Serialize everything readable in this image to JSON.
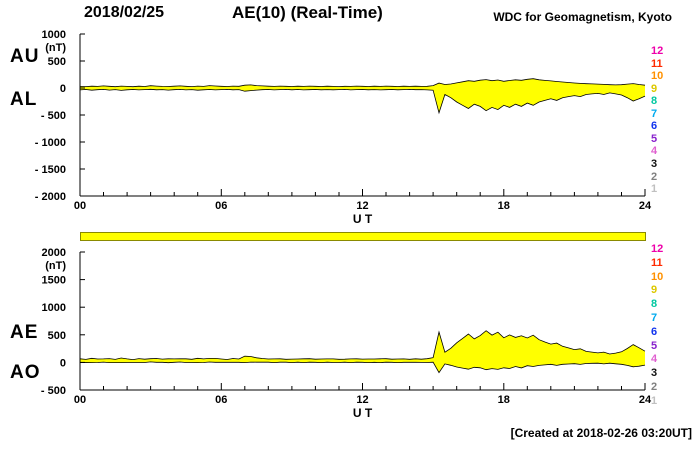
{
  "header": {
    "date": "2018/02/25",
    "title": "AE(10) (Real-Time)",
    "source": "WDC for Geomagnetism, Kyoto"
  },
  "footer": {
    "created": "[Created at 2018-02-26 03:20UT]"
  },
  "station_legend": {
    "values": [
      "12",
      "11",
      "10",
      "9",
      "8",
      "7",
      "6",
      "5",
      "4",
      "3",
      "2",
      "1"
    ],
    "colors": [
      "#ee00aa",
      "#ff2a00",
      "#ff9100",
      "#ddc800",
      "#00c8a0",
      "#00aaee",
      "#1133ee",
      "#8822cc",
      "#e060d0",
      "#111111",
      "#808080",
      "#c0c0c0"
    ]
  },
  "availability_bar": {
    "color": "#ffff00"
  },
  "chart_data": [
    {
      "type": "area",
      "name": "AU-AL panel",
      "x": {
        "start": 0,
        "step": 0.25,
        "span": [
          0,
          24
        ],
        "unit": "hours UT"
      },
      "series": [
        {
          "name": "AU",
          "values": [
            30,
            26,
            34,
            29,
            38,
            31,
            25,
            36,
            30,
            24,
            33,
            28,
            42,
            36,
            30,
            27,
            33,
            39,
            31,
            26,
            35,
            30,
            44,
            37,
            31,
            27,
            36,
            32,
            52,
            58,
            45,
            38,
            33,
            29,
            35,
            31,
            27,
            33,
            30,
            36,
            31,
            28,
            34,
            30,
            26,
            32,
            29,
            35,
            31,
            28,
            33,
            30,
            36,
            31,
            27,
            33,
            30,
            34,
            29,
            32,
            45,
            90,
            65,
            75,
            95,
            115,
            135,
            125,
            145,
            155,
            135,
            148,
            125,
            138,
            152,
            142,
            162,
            172,
            152,
            140,
            132,
            120,
            112,
            102,
            92,
            86,
            80,
            76,
            72,
            66,
            62,
            58,
            62,
            72,
            82,
            64,
            52
          ]
        },
        {
          "name": "AL",
          "values": [
            -35,
            -28,
            -40,
            -32,
            -26,
            -38,
            -30,
            -44,
            -33,
            -27,
            -36,
            -30,
            -25,
            -34,
            -29,
            -38,
            -31,
            -26,
            -35,
            -30,
            -40,
            -33,
            -28,
            -36,
            -30,
            -26,
            -34,
            -29,
            -60,
            -48,
            -38,
            -32,
            -28,
            -35,
            -30,
            -26,
            -33,
            -28,
            -36,
            -31,
            -27,
            -34,
            -29,
            -33,
            -30,
            -26,
            -35,
            -30,
            -28,
            -33,
            -29,
            -36,
            -31,
            -27,
            -34,
            -30,
            -26,
            -32,
            -29,
            -35,
            -40,
            -460,
            -120,
            -180,
            -260,
            -320,
            -380,
            -300,
            -340,
            -420,
            -360,
            -400,
            -320,
            -360,
            -300,
            -340,
            -280,
            -320,
            -260,
            -230,
            -200,
            -230,
            -180,
            -160,
            -140,
            -160,
            -120,
            -110,
            -100,
            -120,
            -90,
            -110,
            -130,
            -180,
            -240,
            -200,
            -150
          ]
        }
      ],
      "ylim": [
        -2000,
        1000
      ],
      "yticks": [
        1000,
        500,
        0,
        -500,
        -1000,
        -1500,
        -2000
      ],
      "ytick_labels": [
        "1000",
        "500",
        "0",
        "- 500",
        "- 1000",
        "- 1500",
        "- 2000"
      ],
      "xticks": [
        0,
        6,
        12,
        18,
        24
      ],
      "xtick_labels": [
        "00",
        "06",
        "12",
        "18",
        "24"
      ],
      "xlabel": "U T",
      "unit_label": "(nT)",
      "side_labels": [
        "AU",
        "AL"
      ],
      "fill_color": "#ffff00",
      "line_color": "#000000",
      "grid": false
    },
    {
      "type": "area",
      "name": "AE-AO panel",
      "x": {
        "start": 0,
        "step": 0.25,
        "span": [
          0,
          24
        ],
        "unit": "hours UT"
      },
      "series": [
        {
          "name": "AE",
          "values": [
            65,
            54,
            74,
            61,
            64,
            69,
            55,
            80,
            63,
            51,
            69,
            58,
            67,
            70,
            59,
            65,
            64,
            65,
            66,
            56,
            75,
            63,
            72,
            73,
            61,
            53,
            70,
            61,
            112,
            106,
            83,
            70,
            61,
            64,
            65,
            57,
            60,
            61,
            66,
            67,
            58,
            62,
            63,
            63,
            56,
            58,
            64,
            65,
            59,
            61,
            62,
            66,
            67,
            58,
            61,
            63,
            56,
            66,
            58,
            67,
            85,
            550,
            185,
            255,
            355,
            435,
            515,
            425,
            485,
            575,
            495,
            548,
            445,
            498,
            452,
            482,
            442,
            492,
            412,
            370,
            332,
            350,
            292,
            262,
            232,
            246,
            200,
            186,
            172,
            186,
            152,
            168,
            192,
            252,
            322,
            264,
            202
          ]
        },
        {
          "name": "AO",
          "values": [
            -3,
            -1,
            -3,
            -2,
            6,
            -4,
            -3,
            -4,
            -2,
            -2,
            -2,
            -1,
            9,
            1,
            1,
            -6,
            1,
            7,
            -2,
            -2,
            -3,
            -2,
            8,
            1,
            1,
            1,
            1,
            2,
            -4,
            5,
            4,
            3,
            3,
            -3,
            3,
            3,
            -3,
            3,
            -3,
            3,
            2,
            -3,
            3,
            -2,
            -2,
            3,
            -3,
            3,
            2,
            -3,
            2,
            -3,
            3,
            2,
            -4,
            2,
            2,
            1,
            0,
            -2,
            3,
            -185,
            -28,
            -53,
            -83,
            -103,
            -123,
            -88,
            -98,
            -133,
            -113,
            -126,
            -98,
            -111,
            -74,
            -99,
            -59,
            -74,
            -54,
            -45,
            -34,
            -55,
            -34,
            -29,
            -24,
            -37,
            -20,
            -17,
            -14,
            -27,
            -14,
            -26,
            -34,
            -54,
            -79,
            -68,
            -49
          ]
        }
      ],
      "ylim": [
        -500,
        2000
      ],
      "yticks": [
        2000,
        1500,
        1000,
        500,
        0,
        -500
      ],
      "ytick_labels": [
        "2000",
        "1500",
        "1000",
        "500",
        "0",
        "- 500"
      ],
      "xticks": [
        0,
        6,
        12,
        18,
        24
      ],
      "xtick_labels": [
        "00",
        "06",
        "12",
        "18",
        "24"
      ],
      "xlabel": "U T",
      "unit_label": "(nT)",
      "side_labels": [
        "AE",
        "AO"
      ],
      "fill_color": "#ffff00",
      "line_color": "#000000",
      "grid": false
    }
  ]
}
